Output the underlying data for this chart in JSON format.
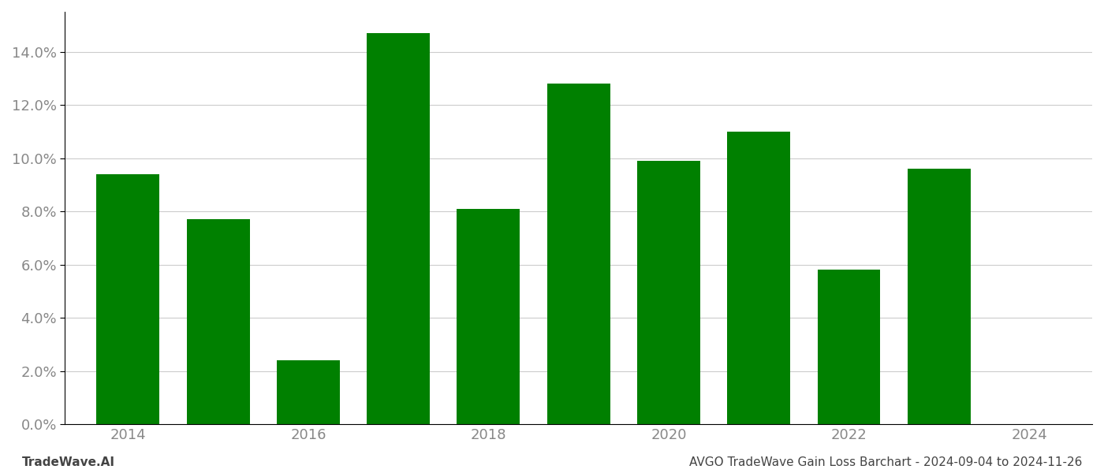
{
  "years": [
    2014,
    2015,
    2016,
    2017,
    2018,
    2019,
    2020,
    2021,
    2022,
    2023
  ],
  "values": [
    0.094,
    0.077,
    0.024,
    0.147,
    0.081,
    0.128,
    0.099,
    0.11,
    0.058,
    0.096
  ],
  "bar_color": "#008000",
  "background_color": "#ffffff",
  "grid_color": "#cccccc",
  "footer_left": "TradeWave.AI",
  "footer_right": "AVGO TradeWave Gain Loss Barchart - 2024-09-04 to 2024-11-26",
  "ylim": [
    0,
    0.155
  ],
  "ytick_values": [
    0.0,
    0.02,
    0.04,
    0.06,
    0.08,
    0.1,
    0.12,
    0.14
  ],
  "xtick_values": [
    2014,
    2016,
    2018,
    2020,
    2022,
    2024
  ],
  "xlim": [
    2013.3,
    2024.7
  ],
  "tick_label_color": "#888888",
  "footer_color": "#444444",
  "axis_line_color": "#000000",
  "bar_width": 0.7,
  "tick_fontsize": 13,
  "footer_fontsize": 11
}
